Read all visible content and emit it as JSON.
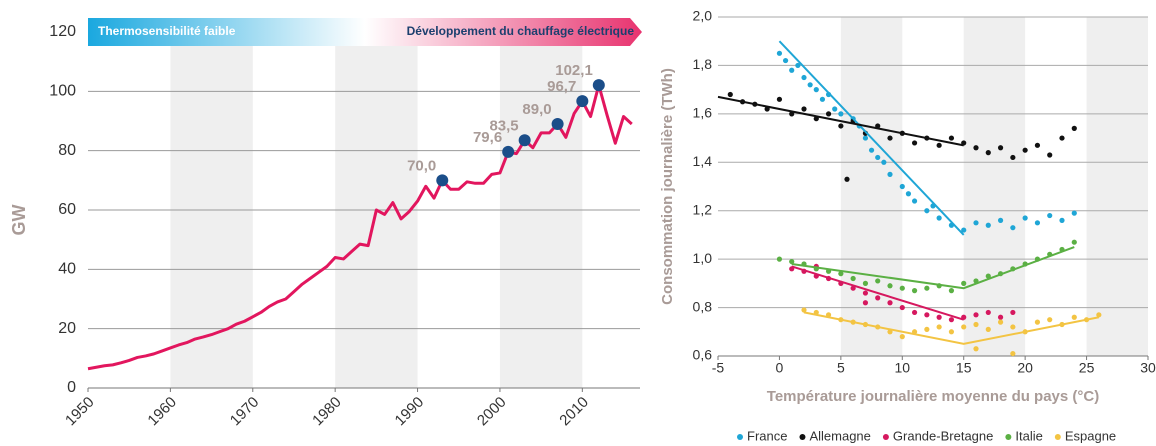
{
  "chart_data": [
    {
      "type": "line",
      "ylabel": "GW",
      "banner": [
        "Thermosensibilité faible",
        "Développement du chauffage électrique"
      ],
      "x": [
        1950,
        1951,
        1952,
        1953,
        1954,
        1955,
        1956,
        1957,
        1958,
        1959,
        1960,
        1961,
        1962,
        1963,
        1964,
        1965,
        1966,
        1967,
        1968,
        1969,
        1970,
        1971,
        1972,
        1973,
        1974,
        1975,
        1976,
        1977,
        1978,
        1979,
        1980,
        1981,
        1982,
        1983,
        1984,
        1985,
        1986,
        1987,
        1988,
        1989,
        1990,
        1991,
        1992,
        1993,
        1994,
        1995,
        1996,
        1997,
        1998,
        1999,
        2000,
        2001,
        2002,
        2003,
        2004,
        2005,
        2006,
        2007,
        2008,
        2009,
        2010,
        2011,
        2012,
        2013,
        2014,
        2015,
        2016
      ],
      "values": [
        6.5,
        7,
        7.5,
        7.8,
        8.5,
        9.3,
        10.3,
        10.8,
        11.5,
        12.5,
        13.5,
        14.5,
        15.3,
        16.5,
        17.2,
        18,
        19,
        20,
        21.5,
        22.5,
        24,
        25.5,
        27.5,
        29,
        30,
        32.5,
        35,
        37,
        39,
        41,
        44,
        43.5,
        46,
        48.5,
        48,
        60,
        58.5,
        62.5,
        57,
        59.5,
        63,
        68,
        64,
        70,
        67,
        67,
        69.5,
        69,
        69,
        72,
        72.5,
        79.6,
        79,
        83.5,
        81,
        86,
        86,
        89,
        84.5,
        92.5,
        96.7,
        91.5,
        102.1,
        92,
        82.5,
        91.5,
        89
      ],
      "color": "#e2165e",
      "annotations": [
        {
          "x": 1993,
          "value": 70.0,
          "label": "70,0"
        },
        {
          "x": 2001,
          "value": 79.6,
          "label": "79,6"
        },
        {
          "x": 2003,
          "value": 83.5,
          "label": "83,5"
        },
        {
          "x": 2007,
          "value": 89.0,
          "label": "89,0"
        },
        {
          "x": 2010,
          "value": 96.7,
          "label": "96,7"
        },
        {
          "x": 2012,
          "value": 102.1,
          "label": "102,1"
        }
      ],
      "annotation_color": "#1b4e89",
      "xlim": [
        1950,
        2017
      ],
      "xticks": [
        1950,
        1960,
        1970,
        1980,
        1990,
        2000,
        2010
      ],
      "ylim": [
        0,
        120
      ],
      "yticks": [
        0,
        20,
        40,
        60,
        80,
        100,
        120
      ],
      "grid": true
    },
    {
      "type": "scatter",
      "xlabel": "Température journalière moyenne du pays (°C)",
      "ylabel": "Consommation journalière (TWh)",
      "xlim": [
        -5,
        30
      ],
      "xticks": [
        -5,
        0,
        5,
        10,
        15,
        20,
        25,
        30
      ],
      "ylim": [
        0.6,
        2.0
      ],
      "yticks": [
        {
          "value": 0.6,
          "label": "0,6"
        },
        {
          "value": 0.8,
          "label": "0,8"
        },
        {
          "value": 1.0,
          "label": "1,0"
        },
        {
          "value": 1.2,
          "label": "1,2"
        },
        {
          "value": 1.4,
          "label": "1,4"
        },
        {
          "value": 1.6,
          "label": "1,6"
        },
        {
          "value": 1.8,
          "label": "1,8"
        },
        {
          "value": 2.0,
          "label": "2,0"
        }
      ],
      "grid": true,
      "legend": "bottom",
      "series": [
        {
          "name": "France",
          "color": "#1fa6d6",
          "x": [
            0,
            0.5,
            1,
            1.5,
            2,
            2.5,
            3,
            3.5,
            4,
            4.5,
            5,
            6,
            6.5,
            7,
            7.5,
            8,
            8.5,
            9,
            10,
            10.5,
            11,
            12,
            12.5,
            13,
            14,
            15,
            16,
            17,
            18,
            19,
            20,
            21,
            22,
            23,
            24
          ],
          "y": [
            1.85,
            1.82,
            1.78,
            1.8,
            1.75,
            1.72,
            1.7,
            1.66,
            1.68,
            1.62,
            1.6,
            1.58,
            1.55,
            1.5,
            1.45,
            1.42,
            1.4,
            1.35,
            1.3,
            1.27,
            1.24,
            1.2,
            1.22,
            1.17,
            1.14,
            1.12,
            1.15,
            1.14,
            1.16,
            1.13,
            1.17,
            1.15,
            1.18,
            1.16,
            1.19
          ],
          "trend_x": [
            0,
            15
          ],
          "trend_y": [
            1.9,
            1.1
          ]
        },
        {
          "name": "Allemagne",
          "color": "#111111",
          "x": [
            -4,
            -3,
            -2,
            -1,
            0,
            1,
            2,
            3,
            4,
            5,
            6,
            7,
            8,
            9,
            10,
            11,
            12,
            13,
            14,
            15,
            16,
            17,
            18,
            19,
            20,
            21,
            22,
            23,
            24,
            5.5
          ],
          "y": [
            1.68,
            1.65,
            1.64,
            1.62,
            1.66,
            1.6,
            1.62,
            1.58,
            1.6,
            1.55,
            1.57,
            1.52,
            1.55,
            1.5,
            1.52,
            1.48,
            1.5,
            1.47,
            1.5,
            1.48,
            1.46,
            1.44,
            1.46,
            1.42,
            1.45,
            1.47,
            1.43,
            1.5,
            1.54,
            1.33
          ],
          "trend_x": [
            -5,
            15
          ],
          "trend_y": [
            1.67,
            1.47
          ]
        },
        {
          "name": "Grande-Bretagne",
          "color": "#d6185f",
          "x": [
            1,
            2,
            3,
            4,
            5,
            6,
            7,
            8,
            9,
            10,
            11,
            12,
            13,
            14,
            15,
            16,
            17,
            18,
            19,
            3,
            7
          ],
          "y": [
            0.96,
            0.95,
            0.93,
            0.92,
            0.9,
            0.88,
            0.86,
            0.84,
            0.82,
            0.8,
            0.78,
            0.77,
            0.76,
            0.75,
            0.76,
            0.77,
            0.78,
            0.76,
            0.78,
            0.97,
            0.82
          ],
          "trend_x": [
            1,
            15
          ],
          "trend_y": [
            0.97,
            0.75
          ]
        },
        {
          "name": "Italie",
          "color": "#5bb044",
          "x": [
            0,
            1,
            2,
            3,
            4,
            5,
            6,
            7,
            8,
            9,
            10,
            11,
            12,
            13,
            14,
            15,
            16,
            17,
            18,
            19,
            20,
            21,
            22,
            23,
            24
          ],
          "y": [
            1.0,
            0.99,
            0.98,
            0.96,
            0.95,
            0.94,
            0.92,
            0.9,
            0.91,
            0.89,
            0.88,
            0.87,
            0.88,
            0.89,
            0.87,
            0.9,
            0.91,
            0.93,
            0.94,
            0.96,
            0.98,
            1.0,
            1.02,
            1.04,
            1.07
          ],
          "trend_x": [
            1,
            15,
            24
          ],
          "trend_y": [
            0.98,
            0.88,
            1.05
          ]
        },
        {
          "name": "Espagne",
          "color": "#f3c443",
          "x": [
            2,
            3,
            4,
            5,
            6,
            7,
            8,
            9,
            10,
            11,
            12,
            13,
            14,
            15,
            16,
            17,
            18,
            19,
            20,
            21,
            22,
            23,
            24,
            25,
            26,
            16,
            19
          ],
          "y": [
            0.79,
            0.78,
            0.77,
            0.75,
            0.74,
            0.73,
            0.72,
            0.7,
            0.68,
            0.7,
            0.71,
            0.72,
            0.7,
            0.72,
            0.73,
            0.71,
            0.74,
            0.72,
            0.7,
            0.74,
            0.75,
            0.73,
            0.76,
            0.75,
            0.77,
            0.63,
            0.61
          ],
          "trend_x": [
            2,
            15,
            26
          ],
          "trend_y": [
            0.78,
            0.65,
            0.76
          ]
        }
      ]
    }
  ]
}
